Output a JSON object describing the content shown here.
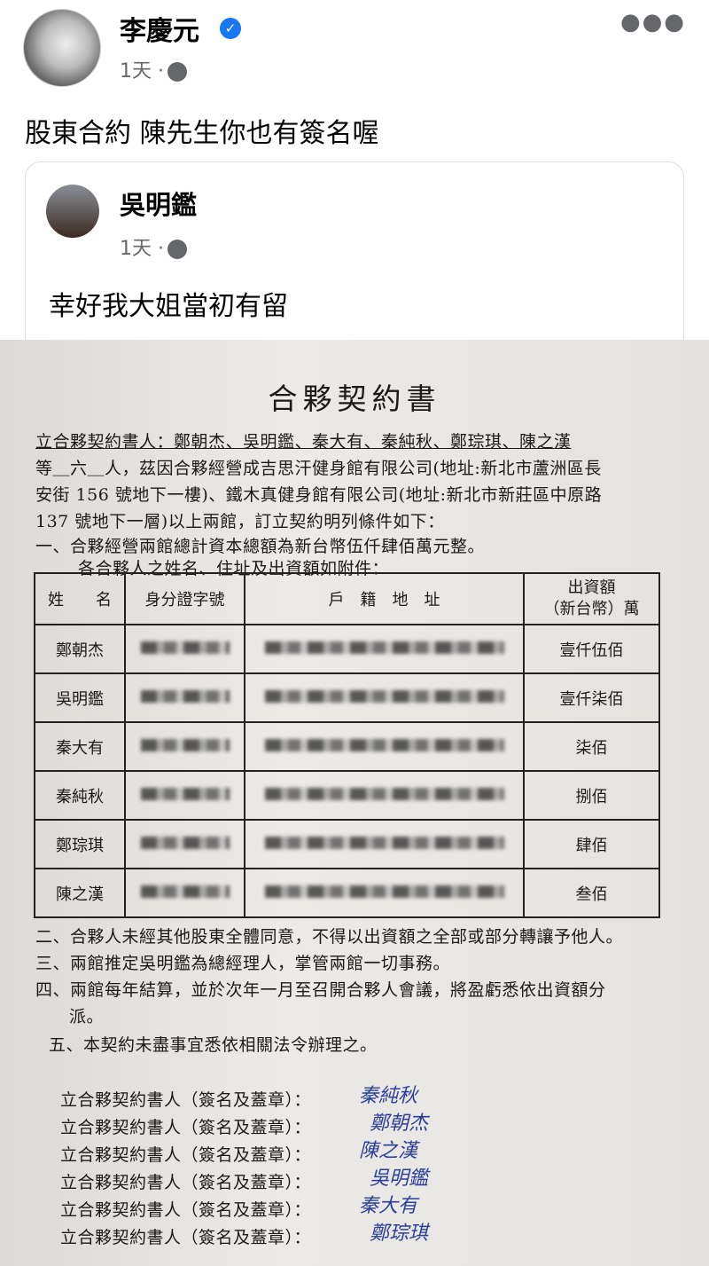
{
  "post": {
    "author": "李慶元",
    "verified": true,
    "time": "1天 ·",
    "text": "股東合約 陳先生你也有簽名喔",
    "icons": [
      "globe-icon",
      "verified-badge-icon",
      "more-icon"
    ]
  },
  "shared": {
    "author": "吳明鑑",
    "time": "1天 ·",
    "text": "幸好我大姐當初有留"
  },
  "document": {
    "title": "合夥契約書",
    "lines": [
      "立合夥契約書人：鄭朝杰、吳明鑑、秦大有、秦純秋、鄭琮琪、陳之漢",
      "等＿六＿人，茲因合夥經營成吉思汗健身館有限公司(地址:新北市蘆洲區長",
      "安街 156 號地下一樓)、鐵木真健身館有限公司(地址:新北市新莊區中原路",
      "137 號地下一層)以上兩館，訂立契約明列條件如下：",
      "一、合夥經營兩館總計資本總額為新台幣伍仟肆佰萬元整。",
      "各合夥人之姓名、住址及出資額如附件："
    ],
    "table": {
      "headers": [
        "姓　　名",
        "身分證字號",
        "戶　籍　地　址",
        "出資額\n（新台幣）萬"
      ],
      "rows": [
        {
          "name": "鄭朝杰",
          "amount": "壹仟伍佰"
        },
        {
          "name": "吳明鑑",
          "amount": "壹仟柒佰"
        },
        {
          "name": "秦大有",
          "amount": "柒佰"
        },
        {
          "name": "秦純秋",
          "amount": "捌佰"
        },
        {
          "name": "鄭琮琪",
          "amount": "肆佰"
        },
        {
          "name": "陳之漢",
          "amount": "叁佰"
        }
      ]
    },
    "clauses": [
      "二、合夥人未經其他股東全體同意，不得以出資額之全部或部分轉讓予他人。",
      "三、兩館推定吳明鑑為總經理人，掌管兩館一切事務。",
      "四、兩館每年結算，並於次年一月至召開合夥人會議，將盈虧悉依出資額分",
      "派。",
      "五、本契約未盡事宜悉依相關法令辦理之。"
    ],
    "signature_label": "立合夥契約書人（簽名及蓋章）：",
    "signatures": [
      "秦純秋",
      "鄭朝杰",
      "陳之漢",
      "吳明鑑",
      "秦大有",
      "鄭琮琪"
    ]
  }
}
